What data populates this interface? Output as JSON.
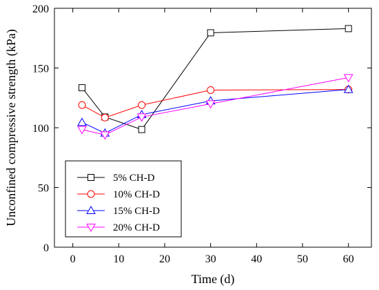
{
  "chart_data": {
    "type": "line",
    "title": "",
    "xlabel": "Time (d)",
    "ylabel": "Unconfined compressive strength (kPa)",
    "xlim": [
      -4,
      65
    ],
    "ylim": [
      0,
      200
    ],
    "xticks": [
      0,
      10,
      20,
      30,
      40,
      50,
      60
    ],
    "yticks": [
      0,
      50,
      100,
      150,
      200
    ],
    "grid": false,
    "legend_position": "bottom-left",
    "series": [
      {
        "name": "5% CH-D",
        "color": "#000000",
        "marker": "square",
        "x": [
          2,
          7,
          15,
          30,
          60
        ],
        "y": [
          133.5,
          109,
          98.5,
          179.5,
          183
        ]
      },
      {
        "name": "10% CH-D",
        "color": "#ff0000",
        "marker": "circle",
        "x": [
          2,
          7,
          15,
          30,
          60
        ],
        "y": [
          119,
          108.5,
          119,
          131.5,
          132
        ]
      },
      {
        "name": "15% CH-D",
        "color": "#0000ff",
        "marker": "triangle-up",
        "x": [
          2,
          7,
          15,
          30,
          60
        ],
        "y": [
          104.5,
          95.5,
          111,
          122.5,
          132
        ]
      },
      {
        "name": "20% CH-D",
        "color": "#ff00ff",
        "marker": "triangle-down",
        "x": [
          2,
          7,
          15,
          30,
          60
        ],
        "y": [
          98.5,
          94,
          109,
          120,
          142
        ]
      }
    ]
  }
}
